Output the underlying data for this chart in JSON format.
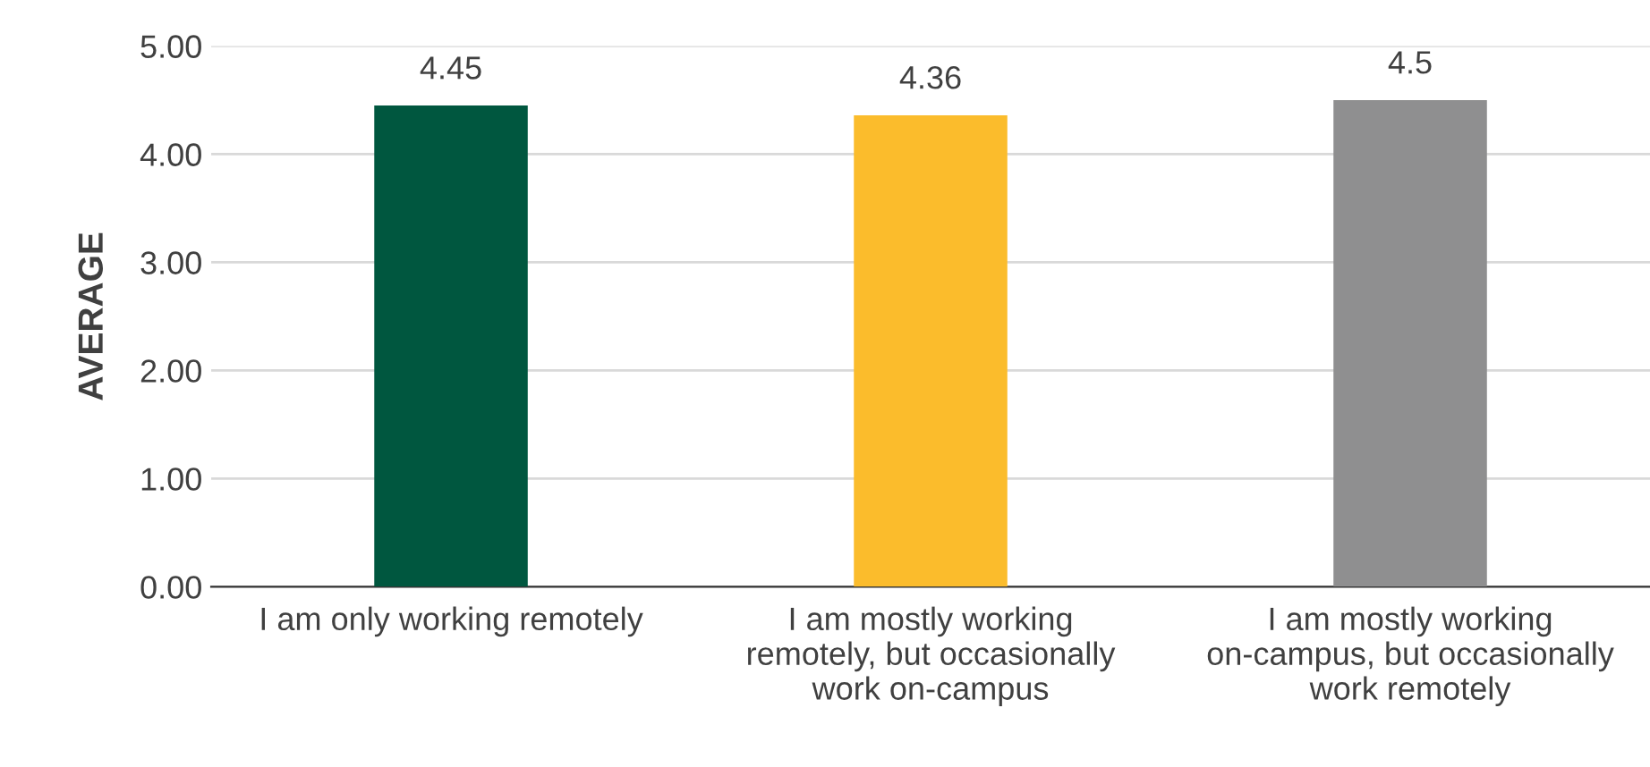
{
  "chart_data": {
    "type": "bar",
    "ylabel": "AVERAGE",
    "categories": [
      "I am only working remotely",
      "I am mostly working remotely, but occasionally work on-campus",
      "I am mostly working on-campus, but occasionally work remotely"
    ],
    "values": [
      4.45,
      4.36,
      4.5
    ],
    "colors": [
      "#00573f",
      "#fbbc2c",
      "#8f8f90"
    ],
    "ylim": [
      0,
      5
    ],
    "yticks": [
      {
        "value": 0,
        "label": "0.00"
      },
      {
        "value": 1,
        "label": "1.00"
      },
      {
        "value": 2,
        "label": "2.00"
      },
      {
        "value": 3,
        "label": "3.00"
      },
      {
        "value": 4,
        "label": "4.00"
      },
      {
        "value": 5,
        "label": "5.00"
      }
    ],
    "grid": "y",
    "legend": false,
    "data_labels": true
  }
}
